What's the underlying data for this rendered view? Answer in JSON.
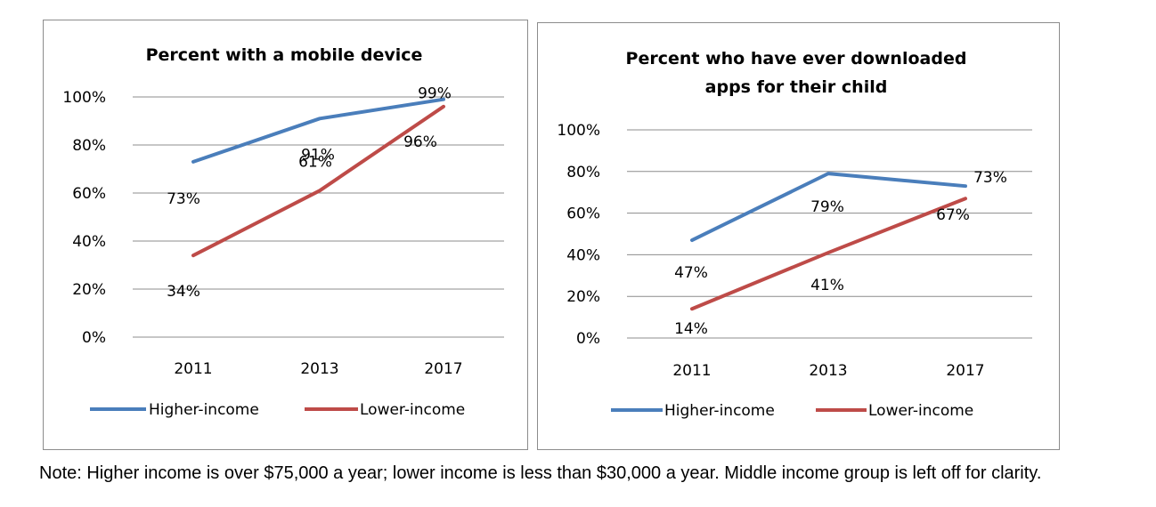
{
  "chart_data": [
    {
      "type": "line",
      "title": [
        "Percent with a mobile device"
      ],
      "categories": [
        "2011",
        "2013",
        "2017"
      ],
      "ylim": [
        0,
        100
      ],
      "yticks": [
        0,
        20,
        40,
        60,
        80,
        100
      ],
      "ytick_labels": [
        "0%",
        "20%",
        "40%",
        "60%",
        "80%",
        "100%"
      ],
      "grid": true,
      "legend": "bottom",
      "series": [
        {
          "name": "Higher-income",
          "color": "#4a7ebb",
          "values": [
            73,
            91,
            99
          ],
          "labels": [
            "73%",
            "91%",
            "99%"
          ]
        },
        {
          "name": "Lower-income",
          "color": "#be4b48",
          "values": [
            34,
            61,
            96
          ],
          "labels": [
            "34%",
            "61%",
            "96%"
          ]
        }
      ]
    },
    {
      "type": "line",
      "title": [
        "Percent who have ever downloaded",
        "apps for their child"
      ],
      "categories": [
        "2011",
        "2013",
        "2017"
      ],
      "ylim": [
        0,
        100
      ],
      "yticks": [
        0,
        20,
        40,
        60,
        80,
        100
      ],
      "ytick_labels": [
        "0%",
        "20%",
        "40%",
        "60%",
        "80%",
        "100%"
      ],
      "grid": true,
      "legend": "bottom",
      "series": [
        {
          "name": "Higher-income",
          "color": "#4a7ebb",
          "values": [
            47,
            79,
            73
          ],
          "labels": [
            "47%",
            "79%",
            "73%"
          ]
        },
        {
          "name": "Lower-income",
          "color": "#be4b48",
          "values": [
            14,
            41,
            67
          ],
          "labels": [
            "14%",
            "41%",
            "67%"
          ]
        }
      ]
    }
  ],
  "note": "Note: Higher income is over $75,000 a year; lower income is less than $30,000 a year. Middle income group is left off for clarity."
}
